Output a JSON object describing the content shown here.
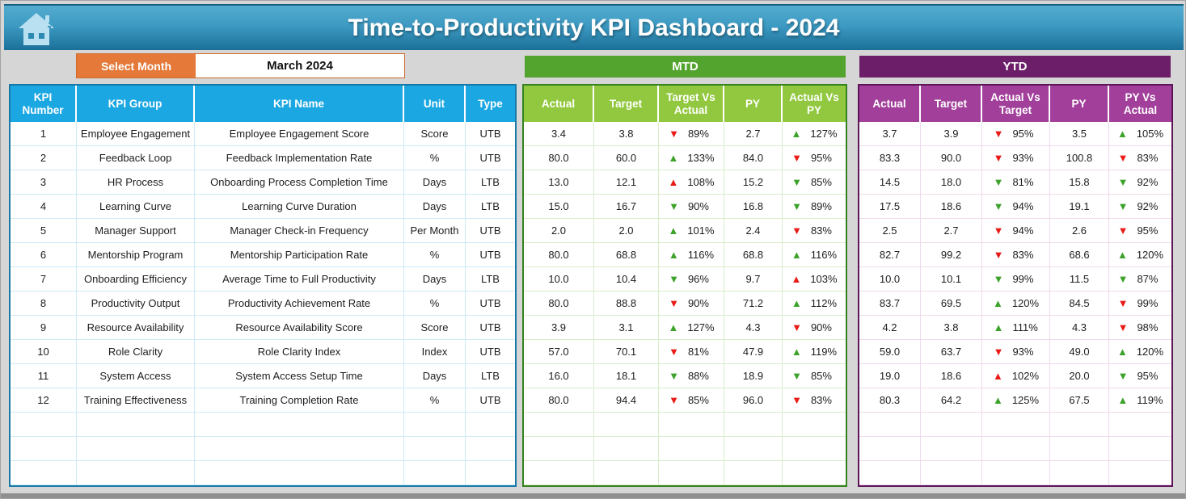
{
  "header": {
    "title": "Time-to-Productivity KPI Dashboard - 2024"
  },
  "month_selector": {
    "label": "Select Month",
    "value": "March 2024"
  },
  "colors": {
    "header_blue_top": "#54abd0",
    "header_blue_bottom": "#1b7099",
    "kpi_header_blue": "#1ba7e2",
    "orange": "#e4793a",
    "mtd_banner_green": "#53a42e",
    "mtd_header_green": "#92c83f",
    "ytd_purple_dark": "#6c1e69",
    "ytd_purple": "#a23f9b",
    "indicator_red": "#e81b17",
    "indicator_green": "#3ca22a"
  },
  "kpi_table": {
    "headers": [
      "KPI Number",
      "KPI Group",
      "KPI Name",
      "Unit",
      "Type"
    ],
    "rows": [
      {
        "number": "1",
        "group": "Employee Engagement",
        "name": "Employee Engagement Score",
        "unit": "Score",
        "type": "UTB"
      },
      {
        "number": "2",
        "group": "Feedback Loop",
        "name": "Feedback Implementation Rate",
        "unit": "%",
        "type": "UTB"
      },
      {
        "number": "3",
        "group": "HR Process",
        "name": "Onboarding Process Completion Time",
        "unit": "Days",
        "type": "LTB"
      },
      {
        "number": "4",
        "group": "Learning Curve",
        "name": "Learning Curve Duration",
        "unit": "Days",
        "type": "LTB"
      },
      {
        "number": "5",
        "group": "Manager Support",
        "name": "Manager Check-in Frequency",
        "unit": "Per Month",
        "type": "UTB"
      },
      {
        "number": "6",
        "group": "Mentorship Program",
        "name": "Mentorship Participation Rate",
        "unit": "%",
        "type": "UTB"
      },
      {
        "number": "7",
        "group": "Onboarding Efficiency",
        "name": "Average Time to Full Productivity",
        "unit": "Days",
        "type": "LTB"
      },
      {
        "number": "8",
        "group": "Productivity Output",
        "name": "Productivity Achievement Rate",
        "unit": "%",
        "type": "UTB"
      },
      {
        "number": "9",
        "group": "Resource Availability",
        "name": "Resource Availability Score",
        "unit": "Score",
        "type": "UTB"
      },
      {
        "number": "10",
        "group": "Role Clarity",
        "name": "Role Clarity Index",
        "unit": "Index",
        "type": "UTB"
      },
      {
        "number": "11",
        "group": "System Access",
        "name": "System Access Setup Time",
        "unit": "Days",
        "type": "LTB"
      },
      {
        "number": "12",
        "group": "Training Effectiveness",
        "name": "Training Completion Rate",
        "unit": "%",
        "type": "UTB"
      }
    ]
  },
  "mtd": {
    "title": "MTD",
    "headers": [
      "Actual",
      "Target",
      "Target Vs Actual",
      "PY",
      "Actual Vs PY"
    ],
    "rows": [
      {
        "actual": "3.4",
        "target": "3.8",
        "tva": {
          "dir": "down",
          "color": "red",
          "pct": "89%"
        },
        "py": "2.7",
        "avp": {
          "dir": "up",
          "color": "green",
          "pct": "127%"
        }
      },
      {
        "actual": "80.0",
        "target": "60.0",
        "tva": {
          "dir": "up",
          "color": "green",
          "pct": "133%"
        },
        "py": "84.0",
        "avp": {
          "dir": "down",
          "color": "red",
          "pct": "95%"
        }
      },
      {
        "actual": "13.0",
        "target": "12.1",
        "tva": {
          "dir": "up",
          "color": "red",
          "pct": "108%"
        },
        "py": "15.2",
        "avp": {
          "dir": "down",
          "color": "green",
          "pct": "85%"
        }
      },
      {
        "actual": "15.0",
        "target": "16.7",
        "tva": {
          "dir": "down",
          "color": "green",
          "pct": "90%"
        },
        "py": "16.8",
        "avp": {
          "dir": "down",
          "color": "green",
          "pct": "89%"
        }
      },
      {
        "actual": "2.0",
        "target": "2.0",
        "tva": {
          "dir": "up",
          "color": "green",
          "pct": "101%"
        },
        "py": "2.4",
        "avp": {
          "dir": "down",
          "color": "red",
          "pct": "83%"
        }
      },
      {
        "actual": "80.0",
        "target": "68.8",
        "tva": {
          "dir": "up",
          "color": "green",
          "pct": "116%"
        },
        "py": "68.8",
        "avp": {
          "dir": "up",
          "color": "green",
          "pct": "116%"
        }
      },
      {
        "actual": "10.0",
        "target": "10.4",
        "tva": {
          "dir": "down",
          "color": "green",
          "pct": "96%"
        },
        "py": "9.7",
        "avp": {
          "dir": "up",
          "color": "red",
          "pct": "103%"
        }
      },
      {
        "actual": "80.0",
        "target": "88.8",
        "tva": {
          "dir": "down",
          "color": "red",
          "pct": "90%"
        },
        "py": "71.2",
        "avp": {
          "dir": "up",
          "color": "green",
          "pct": "112%"
        }
      },
      {
        "actual": "3.9",
        "target": "3.1",
        "tva": {
          "dir": "up",
          "color": "green",
          "pct": "127%"
        },
        "py": "4.3",
        "avp": {
          "dir": "down",
          "color": "red",
          "pct": "90%"
        }
      },
      {
        "actual": "57.0",
        "target": "70.1",
        "tva": {
          "dir": "down",
          "color": "red",
          "pct": "81%"
        },
        "py": "47.9",
        "avp": {
          "dir": "up",
          "color": "green",
          "pct": "119%"
        }
      },
      {
        "actual": "16.0",
        "target": "18.1",
        "tva": {
          "dir": "down",
          "color": "green",
          "pct": "88%"
        },
        "py": "18.9",
        "avp": {
          "dir": "down",
          "color": "green",
          "pct": "85%"
        }
      },
      {
        "actual": "80.0",
        "target": "94.4",
        "tva": {
          "dir": "down",
          "color": "red",
          "pct": "85%"
        },
        "py": "96.0",
        "avp": {
          "dir": "down",
          "color": "red",
          "pct": "83%"
        }
      }
    ]
  },
  "ytd": {
    "title": "YTD",
    "headers": [
      "Actual",
      "Target",
      "Actual Vs Target",
      "PY",
      "PY Vs Actual"
    ],
    "rows": [
      {
        "actual": "3.7",
        "target": "3.9",
        "avt": {
          "dir": "down",
          "color": "red",
          "pct": "95%"
        },
        "py": "3.5",
        "pva": {
          "dir": "up",
          "color": "green",
          "pct": "105%"
        }
      },
      {
        "actual": "83.3",
        "target": "90.0",
        "avt": {
          "dir": "down",
          "color": "red",
          "pct": "93%"
        },
        "py": "100.8",
        "pva": {
          "dir": "down",
          "color": "red",
          "pct": "83%"
        }
      },
      {
        "actual": "14.5",
        "target": "18.0",
        "avt": {
          "dir": "down",
          "color": "green",
          "pct": "81%"
        },
        "py": "15.8",
        "pva": {
          "dir": "down",
          "color": "green",
          "pct": "92%"
        }
      },
      {
        "actual": "17.5",
        "target": "18.6",
        "avt": {
          "dir": "down",
          "color": "green",
          "pct": "94%"
        },
        "py": "19.1",
        "pva": {
          "dir": "down",
          "color": "green",
          "pct": "92%"
        }
      },
      {
        "actual": "2.5",
        "target": "2.7",
        "avt": {
          "dir": "down",
          "color": "red",
          "pct": "94%"
        },
        "py": "2.6",
        "pva": {
          "dir": "down",
          "color": "red",
          "pct": "95%"
        }
      },
      {
        "actual": "82.7",
        "target": "99.2",
        "avt": {
          "dir": "down",
          "color": "red",
          "pct": "83%"
        },
        "py": "68.6",
        "pva": {
          "dir": "up",
          "color": "green",
          "pct": "120%"
        }
      },
      {
        "actual": "10.0",
        "target": "10.1",
        "avt": {
          "dir": "down",
          "color": "green",
          "pct": "99%"
        },
        "py": "11.5",
        "pva": {
          "dir": "down",
          "color": "green",
          "pct": "87%"
        }
      },
      {
        "actual": "83.7",
        "target": "69.5",
        "avt": {
          "dir": "up",
          "color": "green",
          "pct": "120%"
        },
        "py": "84.5",
        "pva": {
          "dir": "down",
          "color": "red",
          "pct": "99%"
        }
      },
      {
        "actual": "4.2",
        "target": "3.8",
        "avt": {
          "dir": "up",
          "color": "green",
          "pct": "111%"
        },
        "py": "4.3",
        "pva": {
          "dir": "down",
          "color": "red",
          "pct": "98%"
        }
      },
      {
        "actual": "59.0",
        "target": "63.7",
        "avt": {
          "dir": "down",
          "color": "red",
          "pct": "93%"
        },
        "py": "49.0",
        "pva": {
          "dir": "up",
          "color": "green",
          "pct": "120%"
        }
      },
      {
        "actual": "19.0",
        "target": "18.6",
        "avt": {
          "dir": "up",
          "color": "red",
          "pct": "102%"
        },
        "py": "20.0",
        "pva": {
          "dir": "down",
          "color": "green",
          "pct": "95%"
        }
      },
      {
        "actual": "80.3",
        "target": "64.2",
        "avt": {
          "dir": "up",
          "color": "green",
          "pct": "125%"
        },
        "py": "67.5",
        "pva": {
          "dir": "up",
          "color": "green",
          "pct": "119%"
        }
      }
    ]
  }
}
